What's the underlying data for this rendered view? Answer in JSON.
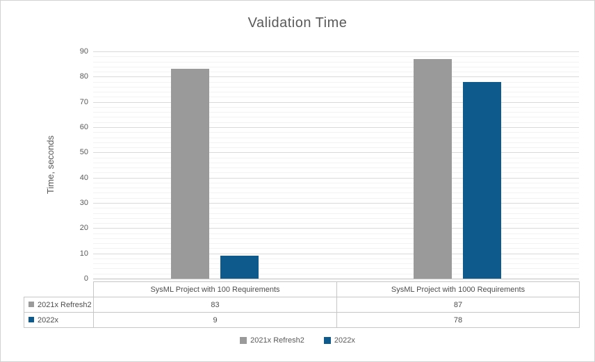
{
  "chart_data": {
    "type": "bar",
    "title": "Validation Time",
    "xlabel": "",
    "ylabel": "Time, seconds",
    "ylim": [
      0,
      90
    ],
    "y_major_unit": 10,
    "y_minor_unit": 2,
    "y_ticks": [
      0,
      10,
      20,
      30,
      40,
      50,
      60,
      70,
      80,
      90
    ],
    "grid": true,
    "legend_position": "bottom",
    "categories": [
      "SysML Project with 100 Requirements",
      "SysML Project with 1000 Requirements"
    ],
    "series": [
      {
        "name": "2021x Refresh2",
        "color": "#9A9A9A",
        "values": [
          83,
          87
        ]
      },
      {
        "name": "2022x",
        "color": "#0E5A8C",
        "values": [
          9,
          78
        ]
      }
    ],
    "data_table_shown": true
  }
}
